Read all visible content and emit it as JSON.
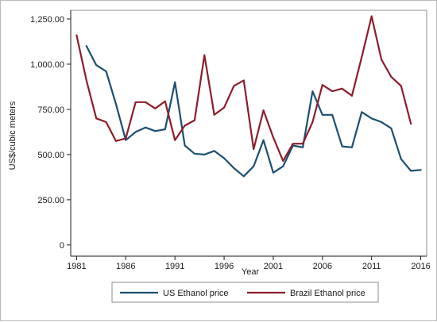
{
  "chart_data": {
    "type": "line",
    "xlabel": "Year",
    "ylabel": "US$/cubic meters",
    "xlim": [
      1981,
      2016
    ],
    "ylim": [
      0,
      1250
    ],
    "x_ticks": [
      1981,
      1986,
      1991,
      1996,
      2001,
      2006,
      2011,
      2016
    ],
    "y_ticks": [
      0,
      250,
      500,
      750,
      1000,
      1250
    ],
    "y_tick_labels": [
      "0",
      "250.00",
      "500.00",
      "750.00",
      "1,000.00",
      "1,250.00"
    ],
    "grid": "none",
    "legend_position": "bottom",
    "series": [
      {
        "name": "US Ethanol price",
        "color": "#1b4f72",
        "x": [
          1982,
          1983,
          1984,
          1985,
          1986,
          1987,
          1988,
          1989,
          1990,
          1991,
          1992,
          1993,
          1994,
          1995,
          1996,
          1997,
          1998,
          1999,
          2000,
          2001,
          2002,
          2003,
          2004,
          2005,
          2006,
          2007,
          2008,
          2009,
          2010,
          2011,
          2012,
          2013,
          2014,
          2015,
          2016
        ],
        "y": [
          1100,
          995,
          960,
          780,
          580,
          625,
          650,
          630,
          640,
          900,
          550,
          505,
          500,
          520,
          480,
          425,
          380,
          435,
          580,
          400,
          435,
          550,
          540,
          850,
          720,
          720,
          545,
          540,
          735,
          700,
          680,
          645,
          475,
          410,
          415
        ]
      },
      {
        "name": "Brazil Ethanol price",
        "color": "#8b1e2c",
        "x": [
          1981,
          1982,
          1983,
          1984,
          1985,
          1986,
          1987,
          1988,
          1989,
          1990,
          1991,
          1992,
          1993,
          1994,
          1995,
          1996,
          1997,
          1998,
          1999,
          2000,
          2001,
          2002,
          2003,
          2004,
          2005,
          2006,
          2007,
          2008,
          2009,
          2010,
          2011,
          2012,
          2013,
          2014,
          2015
        ],
        "y": [
          1160,
          910,
          700,
          680,
          575,
          590,
          790,
          790,
          755,
          795,
          580,
          660,
          690,
          1050,
          720,
          760,
          880,
          910,
          530,
          745,
          595,
          465,
          560,
          560,
          680,
          885,
          850,
          865,
          825,
          1040,
          1265,
          1025,
          930,
          880,
          670
        ]
      }
    ]
  }
}
